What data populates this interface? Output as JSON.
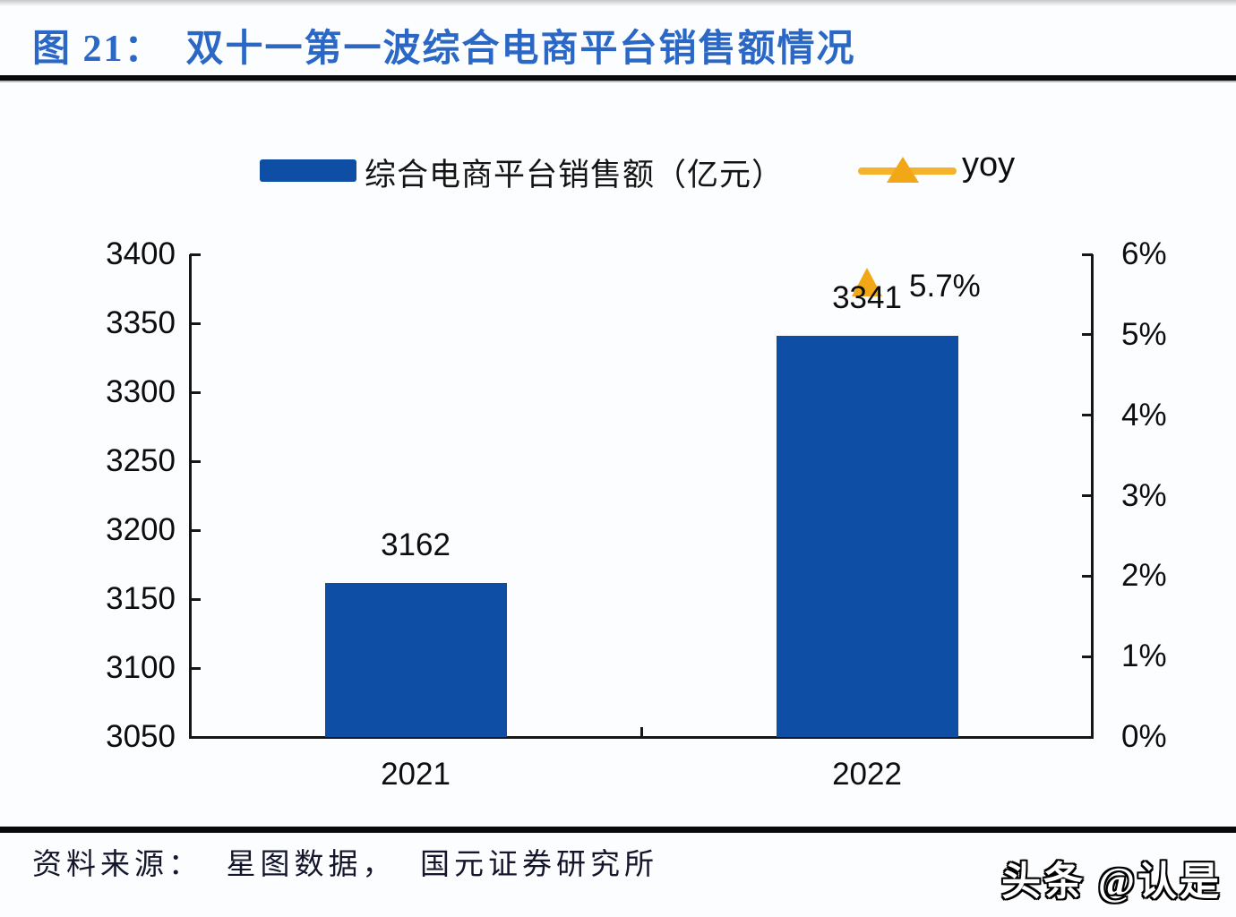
{
  "header": {
    "title": "图 21：  双十一第一波综合电商平台销售额情况",
    "accent_color": "#2b68c6"
  },
  "legend": {
    "bar_label": "综合电商平台销售额（亿元）",
    "line_label": "yoy",
    "bar_color": "#0e4ea4",
    "line_color": "#f2a816"
  },
  "chart_data": {
    "type": "bar",
    "title": "双十一第一波综合电商平台销售额情况",
    "categories": [
      "2021",
      "2022"
    ],
    "series": [
      {
        "name": "综合电商平台销售额（亿元）",
        "type": "bar",
        "axis": "left",
        "values": [
          3162,
          3341
        ],
        "color": "#0e4ea4"
      },
      {
        "name": "yoy",
        "type": "line",
        "axis": "right",
        "values": [
          null,
          5.7
        ],
        "unit": "%",
        "color": "#f2a816"
      }
    ],
    "left_axis": {
      "min": 3050,
      "max": 3400,
      "step": 50,
      "tick_labels": [
        "3400",
        "3350",
        "3300",
        "3250",
        "3200",
        "3150",
        "3100",
        "3050"
      ]
    },
    "right_axis": {
      "min": 0,
      "max": 6,
      "step": 1,
      "tick_labels": [
        "6%",
        "5%",
        "4%",
        "3%",
        "2%",
        "1%",
        "0%"
      ]
    },
    "bar_value_labels": [
      "3162",
      "3341"
    ],
    "yoy_label": "5.7%",
    "grid": false,
    "legend_position": "top"
  },
  "footer": {
    "source": "资料来源：  星图数据，  国元证券研究所",
    "watermark": "头条 @认是"
  }
}
